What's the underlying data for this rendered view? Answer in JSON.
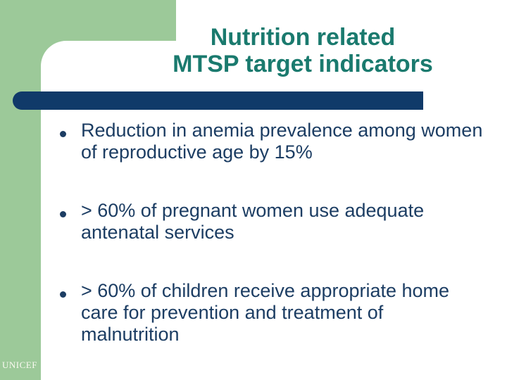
{
  "slide": {
    "title": "Nutrition related\nMTSP target indicators",
    "bullets": [
      {
        "text": "Reduction in anemia prevalence among women\nof reproductive age by 15%"
      },
      {
        "text": "> 60% of pregnant women use adequate\nantenatal services"
      },
      {
        "text": "> 60% of children receive appropriate home\ncare for prevention and treatment of\nmalnutrition"
      }
    ],
    "footer": {
      "brand": "UNICEF"
    },
    "colors": {
      "accent_green": "#9cc999",
      "title_teal": "#1a7a6e",
      "bar_navy": "#103a69",
      "text_navy": "#1c3d63"
    }
  }
}
